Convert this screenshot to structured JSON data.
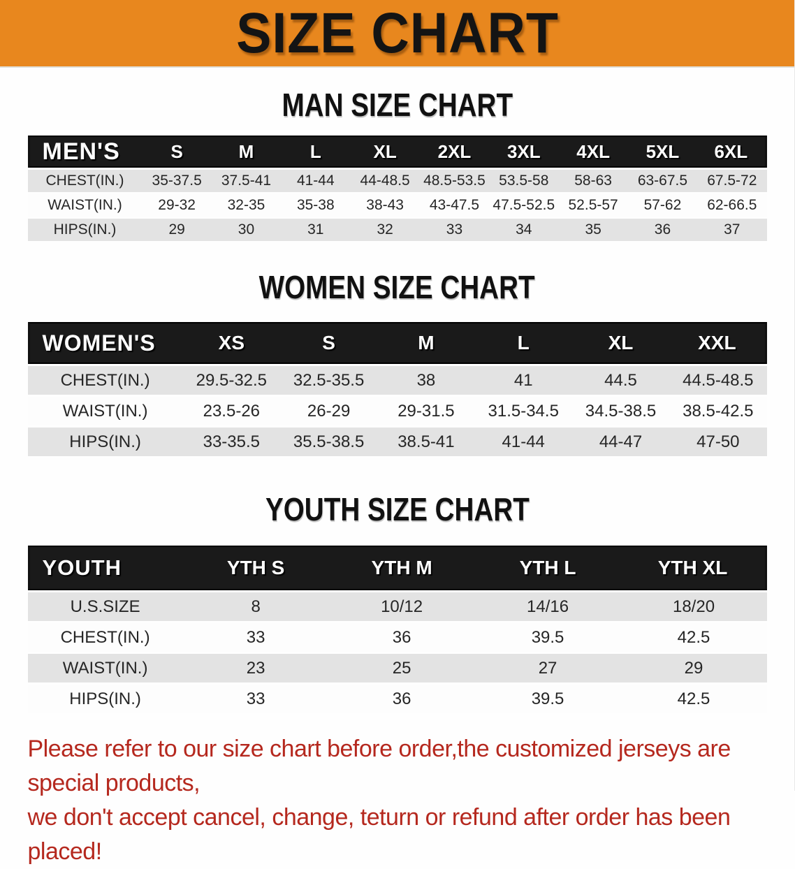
{
  "banner": {
    "title": "SIZE CHART"
  },
  "sections": [
    {
      "heading": "MAN SIZE CHART",
      "table": {
        "label": "MEN'S",
        "columns": [
          "S",
          "M",
          "L",
          "XL",
          "2XL",
          "3XL",
          "4XL",
          "5XL",
          "6XL"
        ],
        "rows": [
          {
            "label": "CHEST(IN.)",
            "values": [
              "35-37.5",
              "37.5-41",
              "41-44",
              "44-48.5",
              "48.5-53.5",
              "53.5-58",
              "58-63",
              "63-67.5",
              "67.5-72"
            ]
          },
          {
            "label": "WAIST(IN.)",
            "values": [
              "29-32",
              "32-35",
              "35-38",
              "38-43",
              "43-47.5",
              "47.5-52.5",
              "52.5-57",
              "57-62",
              "62-66.5"
            ]
          },
          {
            "label": "HIPS(IN.)",
            "values": [
              "29",
              "30",
              "31",
              "32",
              "33",
              "34",
              "35",
              "36",
              "37"
            ]
          }
        ]
      }
    },
    {
      "heading": "WOMEN SIZE CHART",
      "table": {
        "label": "WOMEN'S",
        "columns": [
          "XS",
          "S",
          "M",
          "L",
          "XL",
          "XXL"
        ],
        "rows": [
          {
            "label": "CHEST(IN.)",
            "values": [
              "29.5-32.5",
              "32.5-35.5",
              "38",
              "41",
              "44.5",
              "44.5-48.5"
            ]
          },
          {
            "label": "WAIST(IN.)",
            "values": [
              "23.5-26",
              "26-29",
              "29-31.5",
              "31.5-34.5",
              "34.5-38.5",
              "38.5-42.5"
            ]
          },
          {
            "label": "HIPS(IN.)",
            "values": [
              "33-35.5",
              "35.5-38.5",
              "38.5-41",
              "41-44",
              "44-47",
              "47-50"
            ]
          }
        ]
      }
    },
    {
      "heading": "YOUTH SIZE CHART",
      "table": {
        "label": "YOUTH",
        "columns": [
          "YTH S",
          "YTH M",
          "YTH L",
          "YTH XL"
        ],
        "rows": [
          {
            "label": "U.S.SIZE",
            "values": [
              "8",
              "10/12",
              "14/16",
              "18/20"
            ]
          },
          {
            "label": "CHEST(IN.)",
            "values": [
              "33",
              "36",
              "39.5",
              "42.5"
            ]
          },
          {
            "label": "WAIST(IN.)",
            "values": [
              "23",
              "25",
              "27",
              "29"
            ]
          },
          {
            "label": "HIPS(IN.)",
            "values": [
              "33",
              "36",
              "39.5",
              "42.5"
            ]
          }
        ]
      }
    }
  ],
  "footer": {
    "line1": "Please refer to our size chart before order,the customized jerseys are special products,",
    "line2": "we don't accept cancel, change, teturn or refund after order has been placed!"
  },
  "colors": {
    "banner_bg": "#E8871E",
    "table_header_bg": "#1A1A1A",
    "row_alt_gray": "#E3E3E3",
    "row_white": "#FDFDFD",
    "footer_text": "#B5281E"
  }
}
